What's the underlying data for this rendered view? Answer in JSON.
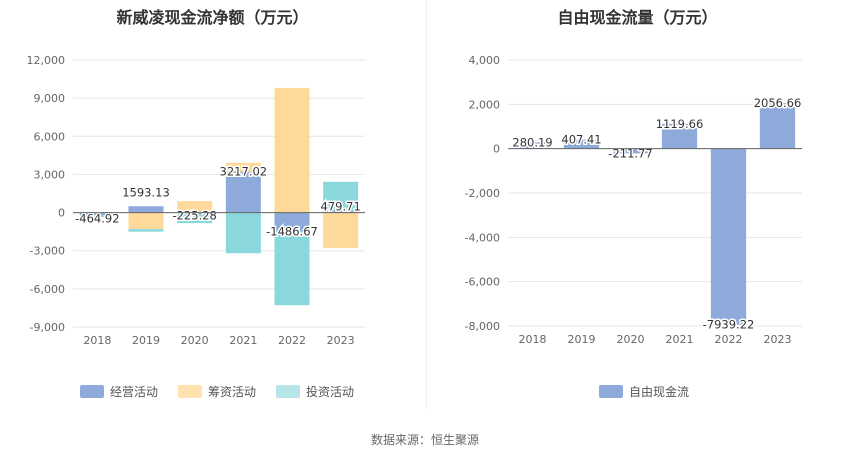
{
  "chart_data": [
    {
      "type": "bar",
      "stacked": true,
      "title": "新威凌现金流净额（万元）",
      "categories": [
        "2018",
        "2019",
        "2020",
        "2021",
        "2022",
        "2023"
      ],
      "series": [
        {
          "name": "经营活动",
          "color": "#8eaadb",
          "values": [
            -200,
            500,
            -130,
            3217.02,
            -1486.67,
            120
          ]
        },
        {
          "name": "筹资活动",
          "color": "#ffd99a",
          "values": [
            0,
            -1300,
            900,
            700,
            9800,
            -2800
          ]
        },
        {
          "name": "投资活动",
          "color": "#8ad8dc",
          "values": [
            -150,
            -200,
            -700,
            -3200,
            -5800,
            2300
          ]
        }
      ],
      "net_labels": [
        "-464.92",
        "1593.13",
        "-225.28",
        "3217.02",
        "-1486.67",
        "479.71"
      ],
      "net_values": [
        -464.92,
        1593.13,
        -225.28,
        3217.02,
        -1486.67,
        479.71
      ],
      "ylim": [
        -9000,
        12000
      ],
      "yticks": [
        -9000,
        -6000,
        -3000,
        0,
        3000,
        6000,
        9000,
        12000
      ],
      "ytick_labels": [
        "-9,000",
        "-6,000",
        "-3,000",
        "0",
        "3,000",
        "6,000",
        "9,000",
        "12,000"
      ],
      "grid": true,
      "legend_position": "bottom"
    },
    {
      "type": "bar",
      "title": "自由现金流量（万元）",
      "categories": [
        "2018",
        "2019",
        "2020",
        "2021",
        "2022",
        "2023"
      ],
      "series": [
        {
          "name": "自由现金流",
          "color": "#8eaadb",
          "values": [
            280.19,
            407.41,
            -211.77,
            1119.66,
            -7939.22,
            2056.66
          ]
        }
      ],
      "value_labels": [
        "280.19",
        "407.41",
        "-211.77",
        "1119.66",
        "-7939.22",
        "2056.66"
      ],
      "ylim": [
        -8000,
        4000
      ],
      "yticks": [
        -8000,
        -6000,
        -4000,
        -2000,
        0,
        2000,
        4000
      ],
      "ytick_labels": [
        "-8,000",
        "-6,000",
        "-4,000",
        "-2,000",
        "0",
        "2,000",
        "4,000"
      ],
      "grid": true,
      "legend_position": "bottom"
    }
  ],
  "source": "数据来源：恒生聚源"
}
